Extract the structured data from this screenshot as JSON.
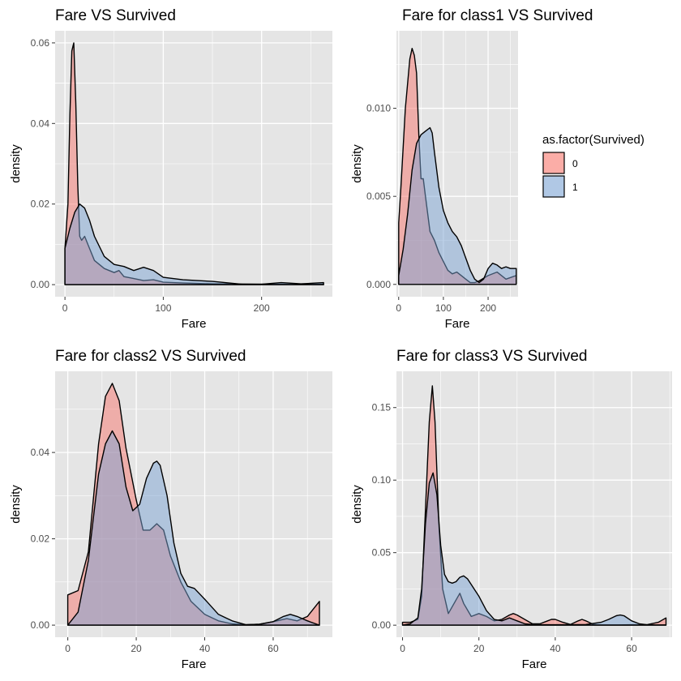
{
  "legend": {
    "title": "as.factor(Survived)",
    "placement": "right",
    "entries": [
      {
        "label": "0",
        "fill": "#f8766d"
      },
      {
        "label": "1",
        "fill": "#7ca3d4"
      }
    ]
  },
  "colors": {
    "panel_bg": "#e5e5e5",
    "grid": "#ffffff",
    "fill_0": "#f8766d",
    "fill_1": "#7ca3d4",
    "outline": "#000000"
  },
  "chart_data": [
    {
      "type": "area",
      "title": "Fare VS Survived",
      "xlabel": "Fare",
      "ylabel": "density",
      "xlim": [
        -10,
        272
      ],
      "ylim": [
        -0.003,
        0.063
      ],
      "xticks": [
        0,
        100,
        200
      ],
      "yticks": [
        0,
        0.02,
        0.04,
        0.06
      ],
      "ytick_labels": [
        "0.00",
        "0.02",
        "0.04",
        "0.06"
      ],
      "series": [
        {
          "name": "0",
          "x": [
            0,
            3,
            5,
            7,
            9,
            11,
            13,
            15,
            17,
            20,
            25,
            30,
            40,
            50,
            55,
            60,
            70,
            80,
            90,
            100,
            120,
            150,
            200,
            263
          ],
          "y": [
            0.009,
            0.02,
            0.042,
            0.058,
            0.06,
            0.045,
            0.025,
            0.012,
            0.011,
            0.012,
            0.009,
            0.006,
            0.004,
            0.003,
            0.0035,
            0.002,
            0.0015,
            0.001,
            0.0012,
            0.0006,
            0.0004,
            0.0002,
            0.0001,
            0.0001
          ]
        },
        {
          "name": "1",
          "x": [
            0,
            5,
            10,
            15,
            20,
            25,
            30,
            40,
            50,
            60,
            70,
            80,
            90,
            100,
            120,
            150,
            180,
            200,
            220,
            240,
            263
          ],
          "y": [
            0.009,
            0.014,
            0.018,
            0.02,
            0.019,
            0.016,
            0.012,
            0.007,
            0.005,
            0.0045,
            0.0035,
            0.0043,
            0.0035,
            0.0018,
            0.0012,
            0.0008,
            0.0001,
            0.0001,
            0.0005,
            0.0002,
            0.0005
          ]
        }
      ]
    },
    {
      "type": "area",
      "title": "Fare for class1 VS Survived",
      "xlabel": "Fare",
      "ylabel": "density",
      "xlim": [
        -5,
        267
      ],
      "ylim": [
        -0.0007,
        0.0144
      ],
      "xticks": [
        0,
        100,
        200
      ],
      "yticks": [
        0,
        0.005,
        0.01
      ],
      "ytick_labels": [
        "0.000",
        "0.005",
        "0.010"
      ],
      "series": [
        {
          "name": "0",
          "x": [
            0,
            5,
            15,
            25,
            30,
            35,
            40,
            45,
            50,
            55,
            60,
            70,
            80,
            90,
            100,
            110,
            120,
            130,
            140,
            150,
            160,
            170,
            180,
            200,
            220,
            240,
            263
          ],
          "y": [
            0.0035,
            0.0055,
            0.01,
            0.0128,
            0.0134,
            0.013,
            0.012,
            0.0085,
            0.006,
            0.006,
            0.005,
            0.003,
            0.0025,
            0.0018,
            0.0013,
            0.0008,
            0.0006,
            0.0007,
            0.0005,
            0.0003,
            0.0001,
            0.0001,
            0.0002,
            0.0005,
            0.0007,
            0.0003,
            0.0005
          ]
        },
        {
          "name": "1",
          "x": [
            0,
            10,
            20,
            30,
            40,
            50,
            60,
            70,
            75,
            80,
            90,
            100,
            110,
            120,
            130,
            140,
            150,
            160,
            170,
            180,
            190,
            200,
            210,
            220,
            230,
            240,
            250,
            263
          ],
          "y": [
            0.0005,
            0.002,
            0.004,
            0.0065,
            0.008,
            0.0085,
            0.0087,
            0.0089,
            0.0086,
            0.0075,
            0.0055,
            0.0042,
            0.0035,
            0.003,
            0.0027,
            0.0022,
            0.0015,
            0.0008,
            0.0003,
            0.0001,
            0.0003,
            0.0009,
            0.0012,
            0.0011,
            0.0009,
            0.001,
            0.0009,
            0.0009
          ]
        }
      ]
    },
    {
      "type": "area",
      "title": "Fare for class2 VS Survived",
      "xlabel": "Fare",
      "ylabel": "density",
      "xlim": [
        -3.7,
        77.3
      ],
      "ylim": [
        -0.0028,
        0.0588
      ],
      "xticks": [
        0,
        20,
        40,
        60
      ],
      "yticks": [
        0,
        0.02,
        0.04
      ],
      "ytick_labels": [
        "0.00",
        "0.02",
        "0.04"
      ],
      "series": [
        {
          "name": "0",
          "x": [
            0,
            3,
            6,
            9,
            11,
            13,
            15,
            17,
            20,
            22,
            24,
            26,
            28,
            30,
            33,
            36,
            40,
            44,
            48,
            52,
            56,
            60,
            64,
            67,
            70,
            73.5
          ],
          "y": [
            0.007,
            0.008,
            0.017,
            0.042,
            0.053,
            0.056,
            0.052,
            0.041,
            0.029,
            0.022,
            0.022,
            0.0235,
            0.022,
            0.016,
            0.01,
            0.0055,
            0.0025,
            0.001,
            0.0003,
            0.0001,
            0.0002,
            0.0008,
            0.0015,
            0.001,
            0.002,
            0.0055
          ]
        },
        {
          "name": "1",
          "x": [
            0,
            3,
            6,
            9,
            11,
            13,
            15,
            17,
            19,
            21,
            23,
            25,
            26,
            27,
            29,
            31,
            33,
            35,
            37,
            40,
            44,
            48,
            52,
            56,
            60,
            63,
            65,
            67,
            70,
            73.5
          ],
          "y": [
            0,
            0.003,
            0.015,
            0.035,
            0.042,
            0.045,
            0.042,
            0.032,
            0.0265,
            0.028,
            0.034,
            0.0375,
            0.038,
            0.037,
            0.03,
            0.019,
            0.012,
            0.009,
            0.0085,
            0.006,
            0.0025,
            0.001,
            0.0001,
            0.0002,
            0.0008,
            0.002,
            0.0025,
            0.002,
            0.001,
            0
          ]
        }
      ]
    },
    {
      "type": "area",
      "title": "Fare for class3 VS Survived",
      "xlabel": "Fare",
      "ylabel": "density",
      "xlim": [
        -1.6,
        70.6
      ],
      "ylim": [
        -0.0083,
        0.175
      ],
      "xticks": [
        0,
        20,
        40,
        60
      ],
      "yticks": [
        0,
        0.05,
        0.1,
        0.15
      ],
      "ytick_labels": [
        "0.00",
        "0.05",
        "0.10",
        "0.15"
      ],
      "series": [
        {
          "name": "0",
          "x": [
            0,
            2,
            4,
            5,
            6,
            7,
            7.8,
            8.5,
            9.5,
            10.5,
            12,
            13.5,
            15,
            16,
            18,
            20,
            22,
            24,
            26,
            28,
            29,
            30,
            32,
            34,
            36,
            38,
            39,
            40,
            42,
            44,
            46,
            47,
            48,
            50,
            52,
            56,
            60,
            64,
            67,
            69
          ],
          "y": [
            0.002,
            0.002,
            0.004,
            0.02,
            0.08,
            0.14,
            0.165,
            0.14,
            0.07,
            0.025,
            0.008,
            0.015,
            0.022,
            0.015,
            0.006,
            0.008,
            0.006,
            0.003,
            0.004,
            0.007,
            0.008,
            0.007,
            0.004,
            0.001,
            0.001,
            0.003,
            0.004,
            0.004,
            0.002,
            0.0005,
            0.003,
            0.004,
            0.003,
            0.0005,
            0.0002,
            0.0002,
            0.0003,
            0.0003,
            0.002,
            0.005
          ]
        },
        {
          "name": "1",
          "x": [
            0,
            2,
            4,
            5,
            6,
            7,
            8,
            9,
            10,
            11,
            12,
            13,
            14,
            15,
            16,
            17,
            18,
            19,
            20,
            22,
            24,
            26,
            28,
            30,
            32,
            34,
            36,
            38,
            40,
            44,
            48,
            52,
            54,
            56,
            57,
            58,
            60,
            62,
            64,
            66,
            69
          ],
          "y": [
            0,
            0.001,
            0.005,
            0.025,
            0.07,
            0.098,
            0.105,
            0.09,
            0.055,
            0.035,
            0.03,
            0.029,
            0.03,
            0.033,
            0.034,
            0.032,
            0.028,
            0.024,
            0.02,
            0.01,
            0.004,
            0.003,
            0.005,
            0.003,
            0.001,
            0.0005,
            0.0003,
            0.0003,
            0.0003,
            0.0003,
            0.0005,
            0.002,
            0.004,
            0.0065,
            0.007,
            0.0065,
            0.003,
            0.001,
            0.0003,
            0.0002,
            0.0002
          ]
        }
      ]
    }
  ]
}
